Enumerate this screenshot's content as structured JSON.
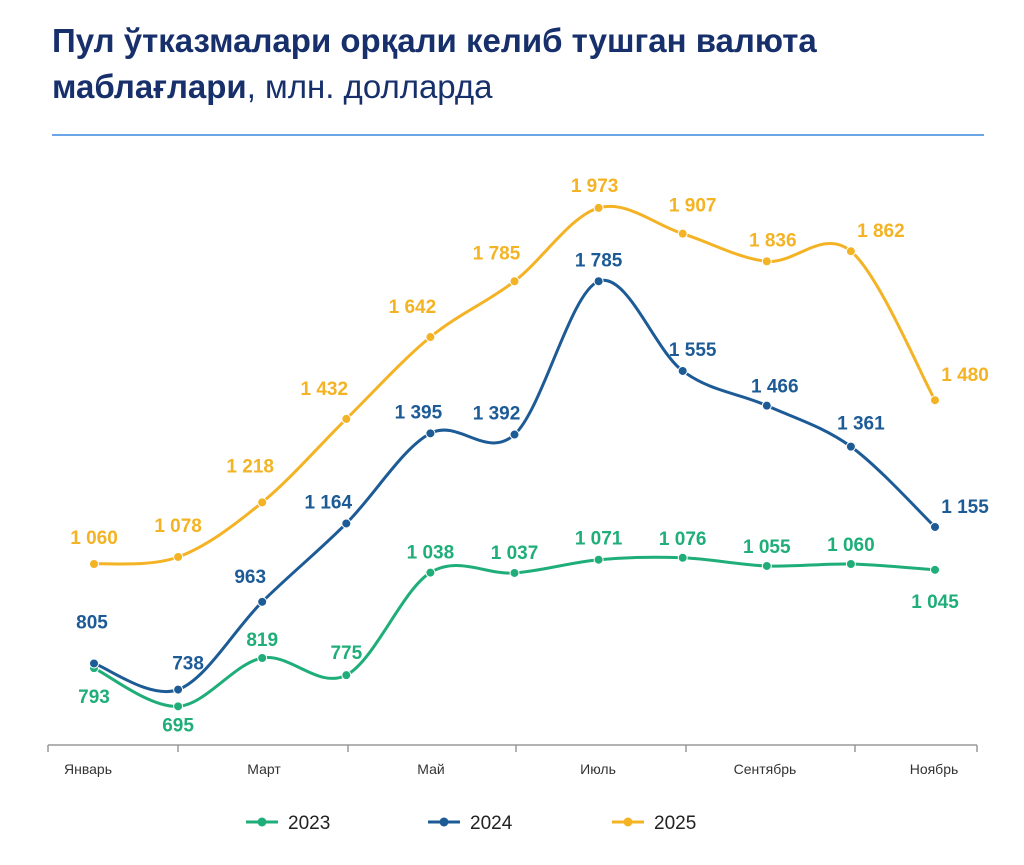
{
  "title": {
    "bold": "Пул ўтказмалари орқали келиб тушган валюта маблағлари",
    "normal": ", млн. долларда"
  },
  "chart_data": {
    "type": "line",
    "title": "Пул ўтказмалари орқали келиб тушган валюта маблағлари, млн. долларда",
    "x": [
      1,
      2,
      3,
      4,
      5,
      6,
      7,
      8,
      9,
      10,
      11
    ],
    "tick_labels": [
      "Январь",
      "Март",
      "Май",
      "Июль",
      "Сентябрь",
      "Ноябрь"
    ],
    "tick_positions": [
      1,
      3,
      5,
      7,
      9,
      11
    ],
    "grid": false,
    "legend": "bottom",
    "series": [
      {
        "name": "2023",
        "color": "#1fae79",
        "values": [
          793,
          695,
          819,
          775,
          1038,
          1037,
          1071,
          1076,
          1055,
          1060,
          1045
        ],
        "labels": [
          "793",
          "695",
          "819",
          "775",
          "1 038",
          "1 037",
          "1 071",
          "1 076",
          "1 055",
          "1 060",
          "1 045"
        ]
      },
      {
        "name": "2024",
        "color": "#1d5b96",
        "values": [
          805,
          738,
          963,
          1164,
          1395,
          1392,
          1785,
          1555,
          1466,
          1361,
          1155
        ],
        "labels": [
          "805",
          "738",
          "963",
          "1 164",
          "1 395",
          "1 392",
          "1 785",
          "1 555",
          "1 466",
          "1 361",
          "1 155"
        ]
      },
      {
        "name": "2025",
        "color": "#f4b324",
        "values": [
          1060,
          1078,
          1218,
          1432,
          1642,
          1785,
          1973,
          1907,
          1836,
          1862,
          1480
        ],
        "labels": [
          "1 060",
          "1 078",
          "1 218",
          "1 432",
          "1 642",
          "1 785",
          "1 973",
          "1 907",
          "1 836",
          "1 862",
          "1 480"
        ]
      }
    ]
  }
}
